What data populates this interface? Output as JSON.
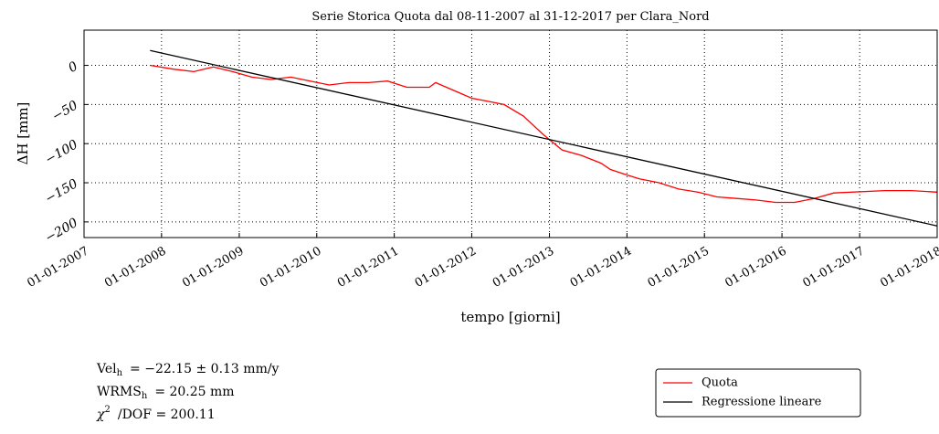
{
  "chart_data": {
    "type": "line",
    "title": "Serie Storica Quota dal 08-11-2007 al 31-12-2017 per Clara_Nord",
    "x_label": "tempo [giorni]",
    "y_label": "ΔH  [mm]",
    "xlim": [
      "01-01-2007",
      "01-01-2018"
    ],
    "xticks": [
      "01-01-2007",
      "01-01-2008",
      "01-01-2009",
      "01-01-2010",
      "01-01-2011",
      "01-01-2012",
      "01-01-2013",
      "01-01-2014",
      "01-01-2015",
      "01-01-2016",
      "01-01-2017",
      "01-01-2018"
    ],
    "ylim": [
      -220,
      45
    ],
    "yticks": [
      {
        "value": -200,
        "label": "−200"
      },
      {
        "value": -150,
        "label": "−150"
      },
      {
        "value": -100,
        "label": "−100"
      },
      {
        "value": -50,
        "label": "−50"
      },
      0
    ],
    "grid": true,
    "legend": "lower right",
    "series": [
      {
        "name": "Quota",
        "color": "#ff0000",
        "x": [
          "08-11-2007",
          "01-03-2008",
          "01-06-2008",
          "01-09-2008",
          "01-12-2008",
          "01-03-2009",
          "01-06-2009",
          "01-09-2009",
          "01-12-2009",
          "01-03-2010",
          "01-06-2010",
          "01-09-2010",
          "01-12-2010",
          "01-03-2011",
          "15-06-2011",
          "15-07-2011",
          "01-01-2012",
          "01-03-2012",
          "01-06-2012",
          "01-09-2012",
          "01-12-2012",
          "01-03-2013",
          "01-06-2013",
          "01-09-2013",
          "15-10-2013",
          "01-01-2014",
          "01-03-2014",
          "01-06-2014",
          "01-09-2014",
          "01-12-2014",
          "01-03-2015",
          "01-06-2015",
          "01-09-2015",
          "01-12-2015",
          "01-03-2016",
          "01-06-2016",
          "01-09-2016",
          "01-05-2017",
          "01-09-2017",
          "31-12-2017"
        ],
        "values": [
          0,
          -5,
          -8,
          -2,
          -8,
          -15,
          -18,
          -15,
          -20,
          -25,
          -22,
          -22,
          -20,
          -28,
          -28,
          -22,
          -42,
          -45,
          -50,
          -65,
          -88,
          -108,
          -115,
          -125,
          -133,
          -140,
          -145,
          -150,
          -158,
          -162,
          -168,
          -170,
          -172,
          -175,
          -175,
          -170,
          -163,
          -160,
          -160,
          -162
        ]
      },
      {
        "name": "Regressione lineare",
        "color": "#000000",
        "x": [
          "08-11-2007",
          "31-12-2017"
        ],
        "values": [
          19,
          -205
        ]
      }
    ],
    "annotations": [
      {
        "label": "Vel",
        "subscript": "h",
        "text": "=  −22.15 ± 0.13  mm/y"
      },
      {
        "label": "WRMS",
        "subscript": "h",
        "text": "=  20.25  mm"
      },
      {
        "label": "χ",
        "superscript": "2",
        "text": "/DOF  =  200.11"
      }
    ]
  }
}
